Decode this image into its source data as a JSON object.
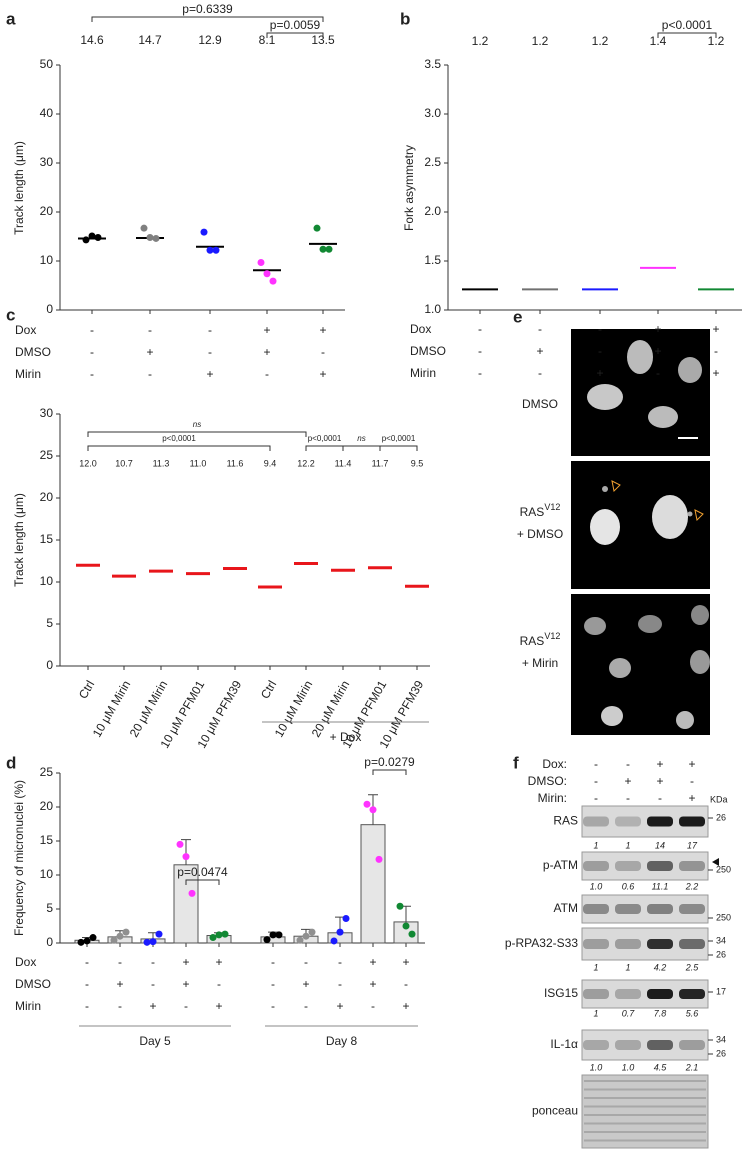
{
  "chart_data": [
    {
      "type": "dot",
      "panel": "a",
      "ylabel": "Track length (μm)",
      "categories": [
        null,
        null,
        null,
        null,
        null
      ],
      "values": [
        14.6,
        14.7,
        12.9,
        8.1,
        13.5
      ],
      "mean_colors": [
        "#000000",
        "#000000",
        "#000000",
        "#000000",
        "#000000"
      ],
      "replicates": [
        [
          14.3,
          15.1,
          14.8
        ],
        [
          16.7,
          14.8,
          14.6
        ],
        [
          15.9,
          12.2,
          12.2
        ],
        [
          9.7,
          7.4,
          5.9
        ],
        [
          16.7,
          12.4,
          12.4
        ]
      ],
      "replicate_colors": [
        "#000000",
        "#808080",
        "#1a1aff",
        "#ff33ff",
        "#118833"
      ],
      "ylim": [
        0,
        50
      ],
      "yticks": [
        0,
        10,
        20,
        30,
        40,
        50
      ],
      "comparisons": [
        {
          "groups": [
            0,
            4
          ],
          "label": "p=0.6339"
        },
        {
          "groups": [
            3,
            4
          ],
          "label": "p=0.0059"
        }
      ],
      "conditions": [
        {
          "label": "Dox",
          "signs": [
            "-",
            "-",
            "-",
            "+",
            "+"
          ]
        },
        {
          "label": "DMSO",
          "signs": [
            "-",
            "+",
            "-",
            "+",
            "-"
          ]
        },
        {
          "label": "Mirin",
          "signs": [
            "-",
            "-",
            "+",
            "-",
            "+"
          ]
        }
      ]
    },
    {
      "type": "dot",
      "panel": "b",
      "ylabel": "Fork asymmetry",
      "categories": [
        null,
        null,
        null,
        null,
        null
      ],
      "values": [
        1.21,
        1.21,
        1.21,
        1.43,
        1.21
      ],
      "value_labels": [
        "1.2",
        "1.2",
        "1.2",
        "1.4",
        "1.2"
      ],
      "mean_colors": [
        "#000000",
        "#707070",
        "#1a1aff",
        "#ff33ff",
        "#118833"
      ],
      "ylim": [
        1,
        3.5
      ],
      "yticks": [
        {
          "value": 1,
          "label": "1.0"
        },
        {
          "value": 1.5,
          "label": "1.5"
        },
        {
          "value": 2,
          "label": "2.0"
        },
        {
          "value": 2.5,
          "label": "2.5"
        },
        {
          "value": 3,
          "label": "3.0"
        },
        {
          "value": 3.5,
          "label": "3.5"
        }
      ],
      "comparisons": [
        {
          "groups": [
            3,
            4
          ],
          "label": "p<0.0001"
        }
      ],
      "conditions": [
        {
          "label": "Dox",
          "signs": [
            "-",
            "-",
            "-",
            "+",
            "+"
          ]
        },
        {
          "label": "DMSO",
          "signs": [
            "-",
            "+",
            "-",
            "+",
            "-"
          ]
        },
        {
          "label": "Mirin",
          "signs": [
            "-",
            "-",
            "+",
            "-",
            "+"
          ]
        }
      ]
    },
    {
      "type": "dot",
      "panel": "c",
      "ylabel": "Track length (μm)",
      "categories": [
        "Ctrl",
        "10 μM Mirin",
        "20 μM Mirin",
        "10 μM PFM01",
        "10 μM PFM39",
        "Ctrl",
        "10 μM Mirin",
        "20 μM Mirin",
        "10 μM PFM01",
        "10 μM PFM39"
      ],
      "values": [
        12,
        10.7,
        11.3,
        11,
        11.6,
        9.4,
        12.2,
        11.4,
        11.7,
        9.5
      ],
      "value_labels": [
        "12.0",
        "10.7",
        "11.3",
        "11.0",
        "11.6",
        "9.4",
        "12.2",
        "11.4",
        "11.7",
        "9.5"
      ],
      "mean_colors": [
        "#e8161b",
        "#e8161b",
        "#e8161b",
        "#e8161b",
        "#e8161b",
        "#e8161b",
        "#e8161b",
        "#e8161b",
        "#e8161b",
        "#e8161b"
      ],
      "ylim": [
        0,
        30
      ],
      "yticks": [
        0,
        5,
        10,
        15,
        20,
        25,
        30
      ],
      "comparisons": [
        {
          "groups": [
            0,
            6
          ],
          "label": "ns"
        },
        {
          "groups": [
            0,
            5
          ],
          "label": "p<0,0001"
        },
        {
          "groups": [
            6,
            7
          ],
          "label": "p<0,0001"
        },
        {
          "groups": [
            7,
            8
          ],
          "label": "ns"
        },
        {
          "groups": [
            8,
            9
          ],
          "label": "p<0,0001"
        }
      ],
      "groups": [
        {
          "label": "+ Dox",
          "categories": [
            5,
            9
          ]
        }
      ]
    },
    {
      "type": "bar",
      "panel": "d",
      "ylabel": "Frequency of micronuclei (%)",
      "categories": [
        null,
        null,
        null,
        null,
        null,
        null,
        null,
        null,
        null,
        null
      ],
      "values": [
        0.4,
        0.9,
        0.6,
        11.5,
        1.1,
        0.9,
        1.0,
        1.5,
        17.4,
        3.1
      ],
      "errors": [
        0.4,
        0.9,
        0.9,
        3.7,
        0.4,
        0.7,
        1.0,
        2.3,
        4.4,
        2.3
      ],
      "color": "#e6e6e6",
      "replicates": [
        [
          0.1,
          0.3,
          0.8
        ],
        [
          0.4,
          1.0,
          1.6
        ],
        [
          0.1,
          0.2,
          1.3
        ],
        [
          14.5,
          12.7,
          7.3
        ],
        [
          0.8,
          1.2,
          1.3
        ],
        [
          0.5,
          1.2,
          1.2
        ],
        [
          0.4,
          1.0,
          1.6
        ],
        [
          0.3,
          1.6,
          3.6
        ],
        [
          20.4,
          19.6,
          12.3
        ],
        [
          5.4,
          2.5,
          1.3
        ]
      ],
      "replicate_colors": [
        "#000000",
        "#909090",
        "#1a1aff",
        "#ff33ff",
        "#118833",
        "#000000",
        "#909090",
        "#1a1aff",
        "#ff33ff",
        "#118833"
      ],
      "ylim": [
        0,
        25
      ],
      "yticks": [
        0,
        5,
        10,
        15,
        20,
        25
      ],
      "comparisons": [
        {
          "groups": [
            3,
            4
          ],
          "label": "p=0.0474"
        },
        {
          "groups": [
            8,
            9
          ],
          "label": "p=0.0279"
        }
      ],
      "conditions": [
        {
          "label": "Dox",
          "signs": [
            "-",
            "-",
            "-",
            "+",
            "+",
            "-",
            "-",
            "-",
            "+",
            "+"
          ]
        },
        {
          "label": "DMSO",
          "signs": [
            "-",
            "+",
            "-",
            "+",
            "-",
            "-",
            "+",
            "-",
            "+",
            "-"
          ]
        },
        {
          "label": "Mirin",
          "signs": [
            "-",
            "-",
            "+",
            "-",
            "+",
            "-",
            "-",
            "+",
            "-",
            "+"
          ]
        }
      ],
      "groups": [
        {
          "label": "Day 5",
          "categories": [
            0,
            4
          ]
        },
        {
          "label": "Day 8",
          "categories": [
            5,
            9
          ]
        }
      ]
    }
  ],
  "images": {
    "panel": "e",
    "items": [
      {
        "name": "DMSO"
      },
      {
        "name": "RAS",
        "superscript": "V12",
        "line2": "+ DMSO"
      },
      {
        "name": "RAS",
        "superscript": "V12",
        "line2": "+ Mirin"
      }
    ]
  },
  "blot": {
    "panel": "f",
    "conditions": [
      {
        "label": "Dox:",
        "signs": [
          "-",
          "-",
          "+",
          "+"
        ]
      },
      {
        "label": "DMSO:",
        "signs": [
          "-",
          "+",
          "+",
          "-"
        ]
      },
      {
        "label": "Mirin:",
        "signs": [
          "-",
          "-",
          "-",
          "+"
        ]
      }
    ],
    "unit": "KDa",
    "rows": [
      {
        "label": "RAS",
        "markers": [
          "26"
        ],
        "quant": [
          "1",
          "1",
          "14",
          "17"
        ]
      },
      {
        "label": "p-ATM",
        "markers": [
          "250"
        ],
        "quant": [
          "1.0",
          "0.6",
          "11.1",
          "2.2"
        ]
      },
      {
        "label": "ATM",
        "markers": [
          "250"
        ]
      },
      {
        "label": "p-RPA32-S33",
        "markers": [
          "34",
          "26"
        ],
        "quant": [
          "1",
          "1",
          "4.2",
          "2.5"
        ]
      },
      {
        "label": "ISG15",
        "markers": [
          "17"
        ],
        "quant": [
          "1",
          "0.7",
          "7.8",
          "5.6"
        ]
      },
      {
        "label": "IL-1α",
        "markers": [
          "34",
          "26"
        ],
        "quant": [
          "1.0",
          "1.0",
          "4.5",
          "2.1"
        ]
      },
      {
        "label": "ponceau"
      }
    ]
  }
}
